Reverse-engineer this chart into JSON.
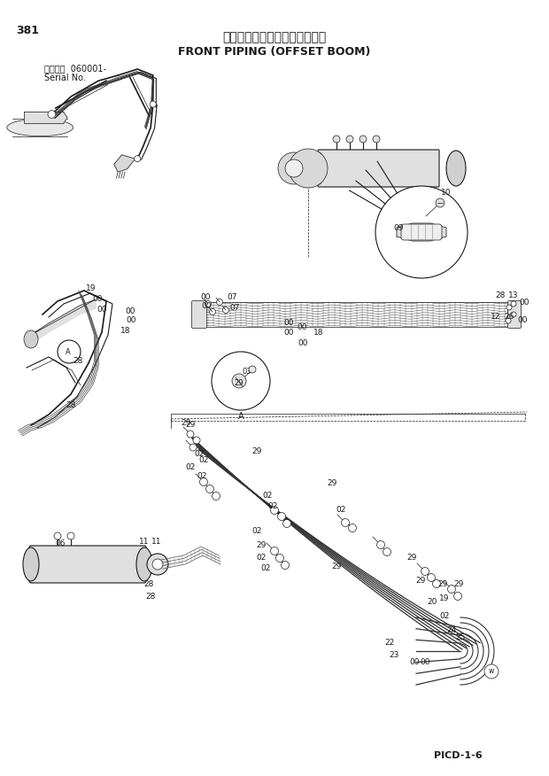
{
  "page_number": "381",
  "title_japanese": "フロント配管（側溝掘ブーム）",
  "title_english": "FRONT PIPING (OFFSET BOOM)",
  "serial_label": "適用号機  060001-",
  "serial_sublabel": "Serial No.",
  "page_code": "PICD-1-6",
  "bg_color": "#ffffff",
  "line_color": "#1a1a1a"
}
